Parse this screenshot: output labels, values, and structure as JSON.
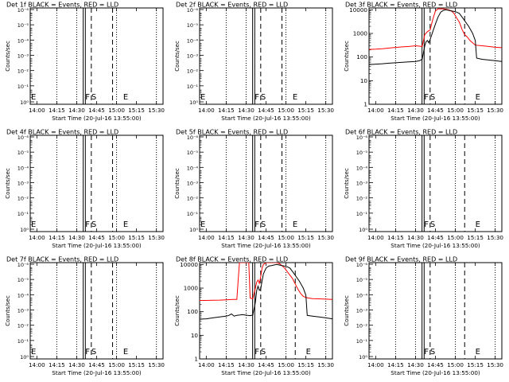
{
  "chart_data": [
    {
      "type": "line",
      "title": "Det 1f BLACK = Events, RED = LLD",
      "ylabel": "Counts/sec",
      "xlabel": "Start Time (20-Jul-16 13:55:00)",
      "x_tick_labels": [
        "14:00",
        "14:15",
        "14:30",
        "14:45",
        "15:00",
        "15:15",
        "15:30"
      ],
      "x_ticks_minutes_from_start": [
        5,
        20,
        35,
        50,
        65,
        80,
        95
      ],
      "xlim_minutes_from_start": [
        0,
        100
      ],
      "y_scale": "log",
      "y_tick_labels": [
        "10⁰",
        "10⁻¹",
        "10⁻²",
        "10⁻³",
        "10⁻⁴",
        "10⁻⁵",
        "10⁻⁶"
      ],
      "markers": [
        {
          "label": "E",
          "t": 0.5
        },
        {
          "label": "F",
          "t": 41.5
        },
        {
          "label": "S",
          "t": 46
        },
        {
          "label": "E",
          "t": 70
        }
      ],
      "series": []
    },
    {
      "type": "line",
      "title": "Det 2f BLACK = Events, RED = LLD",
      "ylabel": "Counts/sec",
      "xlabel": "Start Time (20-Jul-16 13:55:00)",
      "x_tick_labels": [
        "14:00",
        "14:15",
        "14:30",
        "14:45",
        "15:00",
        "15:15",
        "15:30"
      ],
      "x_ticks_minutes_from_start": [
        5,
        20,
        35,
        50,
        65,
        80,
        95
      ],
      "xlim_minutes_from_start": [
        0,
        100
      ],
      "y_scale": "log",
      "y_tick_labels": [
        "10⁰",
        "10⁻¹",
        "10⁻²",
        "10⁻³",
        "10⁻⁴",
        "10⁻⁵",
        "10⁻⁶"
      ],
      "markers": [
        {
          "label": "E",
          "t": 0.5
        },
        {
          "label": "F",
          "t": 41.5
        },
        {
          "label": "S",
          "t": 46
        },
        {
          "label": "E",
          "t": 70
        }
      ],
      "series": []
    },
    {
      "type": "line",
      "title": "Det 3f BLACK = Events, RED = LLD",
      "ylabel": "Counts/sec",
      "xlabel": "Start Time (20-Jul-16 13:55:00)",
      "x_tick_labels": [
        "14:00",
        "14:15",
        "14:30",
        "14:45",
        "15:00",
        "15:15",
        "15:30"
      ],
      "x_ticks_minutes_from_start": [
        5,
        20,
        35,
        50,
        65,
        80,
        95
      ],
      "xlim_minutes_from_start": [
        0,
        100
      ],
      "y_scale": "log",
      "y_tick_labels": [
        "1",
        "10",
        "100",
        "1000",
        "10000"
      ],
      "ylim": [
        1,
        12000
      ],
      "markers": [
        {
          "label": "F",
          "t": 41.5
        },
        {
          "label": "S",
          "t": 46
        },
        {
          "label": "E",
          "t": 80
        }
      ],
      "series": [
        {
          "color": "#ff0000",
          "x": [
            0,
            5,
            10,
            15,
            20,
            25,
            30,
            35,
            38,
            40,
            42,
            44,
            46,
            48,
            50,
            52,
            54,
            56,
            58,
            60,
            62,
            64,
            66,
            68,
            70,
            72,
            74,
            76,
            78,
            80,
            85,
            90,
            95,
            100
          ],
          "y": [
            210,
            215,
            225,
            240,
            255,
            270,
            280,
            300,
            290,
            280,
            900,
            1200,
            1400,
            4000,
            9000,
            11000,
            11000,
            11000,
            10500,
            10000,
            9000,
            7000,
            4500,
            3000,
            1500,
            900,
            700,
            500,
            400,
            320,
            300,
            280,
            260,
            250
          ]
        },
        {
          "color": "#000000",
          "x": [
            0,
            5,
            10,
            15,
            20,
            25,
            30,
            35,
            38,
            40,
            42,
            43,
            44,
            45,
            46,
            47,
            48,
            50,
            52,
            54,
            56,
            58,
            60,
            62,
            64,
            66,
            68,
            70,
            72,
            75,
            78,
            80,
            81,
            85,
            90,
            95,
            100
          ],
          "y": [
            48,
            50,
            52,
            55,
            57,
            60,
            62,
            65,
            70,
            80,
            300,
            450,
            500,
            400,
            550,
            800,
            1200,
            2500,
            5000,
            8000,
            9500,
            10000,
            9500,
            9000,
            8500,
            8000,
            7000,
            5000,
            3500,
            2000,
            1000,
            500,
            90,
            80,
            75,
            70,
            65
          ]
        }
      ]
    },
    {
      "type": "line",
      "title": "Det 4f BLACK = Events, RED = LLD",
      "ylabel": "Counts/sec",
      "xlabel": "Start Time (20-Jul-16 13:55:00)",
      "x_tick_labels": [
        "14:00",
        "14:15",
        "14:30",
        "14:45",
        "15:00",
        "15:15",
        "15:30"
      ],
      "x_ticks_minutes_from_start": [
        5,
        20,
        35,
        50,
        65,
        80,
        95
      ],
      "xlim_minutes_from_start": [
        0,
        100
      ],
      "y_scale": "log",
      "y_tick_labels": [
        "10⁰",
        "10⁻¹",
        "10⁻²",
        "10⁻³",
        "10⁻⁴",
        "10⁻⁵",
        "10⁻⁶"
      ],
      "markers": [
        {
          "label": "E",
          "t": 0.5
        },
        {
          "label": "F",
          "t": 41.5
        },
        {
          "label": "S",
          "t": 46
        },
        {
          "label": "E",
          "t": 70
        }
      ],
      "series": []
    },
    {
      "type": "line",
      "title": "Det 5f BLACK = Events, RED = LLD",
      "ylabel": "Counts/sec",
      "xlabel": "Start Time (20-Jul-16 13:55:00)",
      "x_tick_labels": [
        "14:00",
        "14:15",
        "14:30",
        "14:45",
        "15:00",
        "15:15",
        "15:30"
      ],
      "x_ticks_minutes_from_start": [
        5,
        20,
        35,
        50,
        65,
        80,
        95
      ],
      "xlim_minutes_from_start": [
        0,
        100
      ],
      "y_scale": "log",
      "y_tick_labels": [
        "10⁰",
        "10⁻¹",
        "10⁻²",
        "10⁻³",
        "10⁻⁴",
        "10⁻⁵",
        "10⁻⁶"
      ],
      "markers": [
        {
          "label": "E",
          "t": 0.5
        },
        {
          "label": "F",
          "t": 41.5
        },
        {
          "label": "S",
          "t": 46
        },
        {
          "label": "E",
          "t": 70
        }
      ],
      "series": []
    },
    {
      "type": "line",
      "title": "Det 6f BLACK = Events, RED = LLD",
      "ylabel": "Counts/sec",
      "xlabel": "Start Time (20-Jul-16 13:55:00)",
      "x_tick_labels": [
        "14:00",
        "14:15",
        "14:30",
        "14:45",
        "15:00",
        "15:15",
        "15:30"
      ],
      "x_ticks_minutes_from_start": [
        5,
        20,
        35,
        50,
        65,
        80,
        95
      ],
      "xlim_minutes_from_start": [
        0,
        100
      ],
      "y_scale": "log",
      "y_tick_labels": [
        "10⁰",
        "10⁻¹",
        "10⁻²",
        "10⁻³",
        "10⁻⁴",
        "10⁻⁵",
        "10⁻⁶"
      ],
      "markers": [
        {
          "label": "F",
          "t": 41.5
        },
        {
          "label": "S",
          "t": 46
        },
        {
          "label": "E",
          "t": 80
        }
      ],
      "series": []
    },
    {
      "type": "line",
      "title": "Det 7f BLACK = Events, RED = LLD",
      "ylabel": "Counts/sec",
      "xlabel": "Start Time (20-Jul-16 13:55:00)",
      "x_tick_labels": [
        "14:00",
        "14:15",
        "14:30",
        "14:45",
        "15:00",
        "15:15",
        "15:30"
      ],
      "x_ticks_minutes_from_start": [
        5,
        20,
        35,
        50,
        65,
        80,
        95
      ],
      "xlim_minutes_from_start": [
        0,
        100
      ],
      "y_scale": "log",
      "y_tick_labels": [
        "10⁰",
        "10⁻¹",
        "10⁻²",
        "10⁻³",
        "10⁻⁴",
        "10⁻⁵",
        "10⁻⁶"
      ],
      "markers": [
        {
          "label": "E",
          "t": 0.5
        },
        {
          "label": "F",
          "t": 41.5
        },
        {
          "label": "S",
          "t": 46
        },
        {
          "label": "E",
          "t": 70
        }
      ],
      "series": []
    },
    {
      "type": "line",
      "title": "Det 8f BLACK = Events, RED = LLD",
      "ylabel": "Counts/sec",
      "xlabel": "Start Time (20-Jul-16 13:55:00)",
      "x_tick_labels": [
        "14:00",
        "14:15",
        "14:30",
        "14:45",
        "15:00",
        "15:15",
        "15:30"
      ],
      "x_ticks_minutes_from_start": [
        5,
        20,
        35,
        50,
        65,
        80,
        95
      ],
      "xlim_minutes_from_start": [
        0,
        100
      ],
      "y_scale": "log",
      "y_tick_labels": [
        "1",
        "10",
        "100",
        "1000",
        "10000"
      ],
      "ylim": [
        1,
        12000
      ],
      "markers": [
        {
          "label": "F",
          "t": 41.5
        },
        {
          "label": "S",
          "t": 46
        },
        {
          "label": "E",
          "t": 80
        }
      ],
      "series": [
        {
          "color": "#ff0000",
          "x": [
            0,
            5,
            10,
            15,
            20,
            25,
            28,
            29,
            30,
            31,
            32,
            33,
            34,
            35,
            36,
            37,
            38,
            40,
            42,
            43,
            44,
            45,
            46,
            47,
            48,
            50,
            52,
            54,
            56,
            58,
            60,
            62,
            64,
            66,
            68,
            70,
            72,
            74,
            76,
            78,
            80,
            82,
            85,
            90,
            95,
            100
          ],
          "y": [
            300,
            300,
            305,
            310,
            320,
            330,
            330,
            2000,
            12000,
            12000,
            12000,
            12000,
            12000,
            12000,
            12000,
            12000,
            380,
            350,
            1000,
            1800,
            2200,
            1600,
            3000,
            7000,
            10000,
            12000,
            12000,
            12000,
            12000,
            12000,
            11000,
            9000,
            7000,
            5000,
            3500,
            2500,
            1500,
            900,
            600,
            450,
            400,
            380,
            360,
            350,
            340,
            330
          ]
        },
        {
          "color": "#000000",
          "x": [
            0,
            5,
            10,
            15,
            20,
            22,
            24,
            26,
            28,
            30,
            32,
            34,
            36,
            38,
            40,
            42,
            43,
            44,
            45,
            46,
            47,
            48,
            50,
            52,
            54,
            56,
            58,
            60,
            62,
            64,
            66,
            68,
            70,
            72,
            75,
            78,
            80,
            81,
            85,
            90,
            95,
            100
          ],
          "y": [
            48,
            50,
            55,
            60,
            65,
            70,
            80,
            65,
            70,
            72,
            75,
            73,
            70,
            68,
            72,
            250,
            800,
            1200,
            800,
            900,
            2000,
            4000,
            7000,
            8500,
            9000,
            9500,
            10000,
            9500,
            9000,
            8500,
            8000,
            7000,
            5000,
            3500,
            2000,
            1000,
            500,
            70,
            65,
            60,
            55,
            50
          ]
        }
      ]
    },
    {
      "type": "line",
      "title": "Det 9f BLACK = Events, RED = LLD",
      "ylabel": "Counts/sec",
      "xlabel": "Start Time (20-Jul-16 13:55:00)",
      "x_tick_labels": [
        "14:00",
        "14:15",
        "14:30",
        "14:45",
        "15:00",
        "15:15",
        "15:30"
      ],
      "x_ticks_minutes_from_start": [
        5,
        20,
        35,
        50,
        65,
        80,
        95
      ],
      "xlim_minutes_from_start": [
        0,
        100
      ],
      "y_scale": "log",
      "y_tick_labels": [
        "10⁰",
        "10⁻¹",
        "10⁻²",
        "10⁻³",
        "10⁻⁴",
        "10⁻⁵",
        "10⁻⁶"
      ],
      "markers": [
        {
          "label": "F",
          "t": 41.5
        },
        {
          "label": "S",
          "t": 46
        },
        {
          "label": "E",
          "t": 80
        }
      ],
      "series": []
    }
  ]
}
